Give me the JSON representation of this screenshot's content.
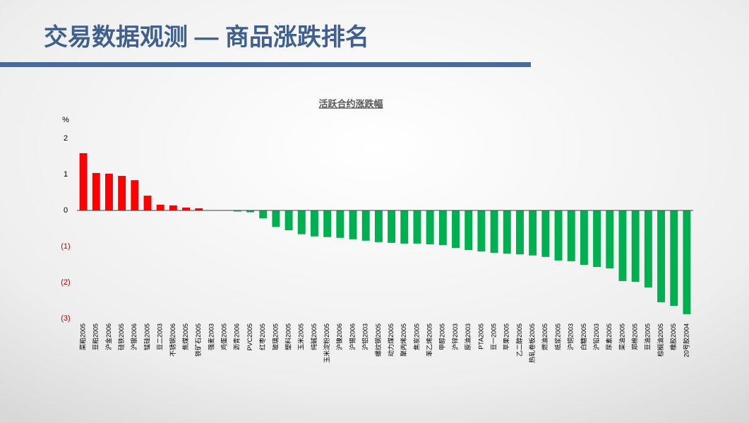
{
  "header": {
    "title": "交易数据观测 — 商品涨跌排名"
  },
  "chart_data": {
    "type": "bar",
    "title": "活跃合约涨跌幅",
    "y_label": "%",
    "categories": [
      "菜粕2005",
      "豆粕2005",
      "沪金2006",
      "硅铁2005",
      "沪银2006",
      "锰硅2005",
      "豆二2003",
      "不锈钢2006",
      "焦煤2005",
      "铁矿石2005",
      "强麦2003",
      "鸡蛋2005",
      "沥青2006",
      "PVC2005",
      "红枣2005",
      "玻璃2005",
      "塑料2005",
      "玉米2005",
      "纯碱2005",
      "玉米淀粉2005",
      "沪镍2006",
      "沪锡2006",
      "沪铝2003",
      "螺纹钢2005",
      "动力煤2005",
      "聚丙烯2005",
      "焦炭2005",
      "苯乙烯2005",
      "甲醇2005",
      "沪锌2003",
      "原油2003",
      "PTA2005",
      "豆一2005",
      "苹果2005",
      "乙二醇2005",
      "热轧卷板2005",
      "燃油2005",
      "纸浆2005",
      "沪铜2003",
      "白糖2005",
      "沪铅2003",
      "尿素2005",
      "菜油2005",
      "郑棉2005",
      "豆油2005",
      "棕榈油2005",
      "橡胶2005",
      "20号胶2004"
    ],
    "values": [
      1.59,
      1.04,
      1.02,
      0.96,
      0.84,
      0.41,
      0.16,
      0.14,
      0.08,
      0.06,
      0,
      -0.01,
      -0.03,
      -0.05,
      -0.22,
      -0.46,
      -0.55,
      -0.66,
      -0.72,
      -0.74,
      -0.76,
      -0.8,
      -0.84,
      -0.88,
      -0.9,
      -0.92,
      -0.92,
      -0.94,
      -0.96,
      -1.04,
      -1.1,
      -1.14,
      -1.18,
      -1.2,
      -1.22,
      -1.25,
      -1.29,
      -1.39,
      -1.41,
      -1.51,
      -1.57,
      -1.61,
      -1.96,
      -1.98,
      -2.14,
      -2.55,
      -2.65,
      -2.88
    ],
    "positive_color": "#ff0000",
    "negative_color": "#00b050",
    "negative_tick_color": "#c00000",
    "ylim": [
      -3,
      2
    ],
    "yticks": [
      2,
      1,
      0,
      {
        "value": -1,
        "label": "(1)"
      },
      {
        "value": -2,
        "label": "(2)"
      },
      {
        "value": -3,
        "label": "(3)"
      }
    ],
    "grid": false
  }
}
